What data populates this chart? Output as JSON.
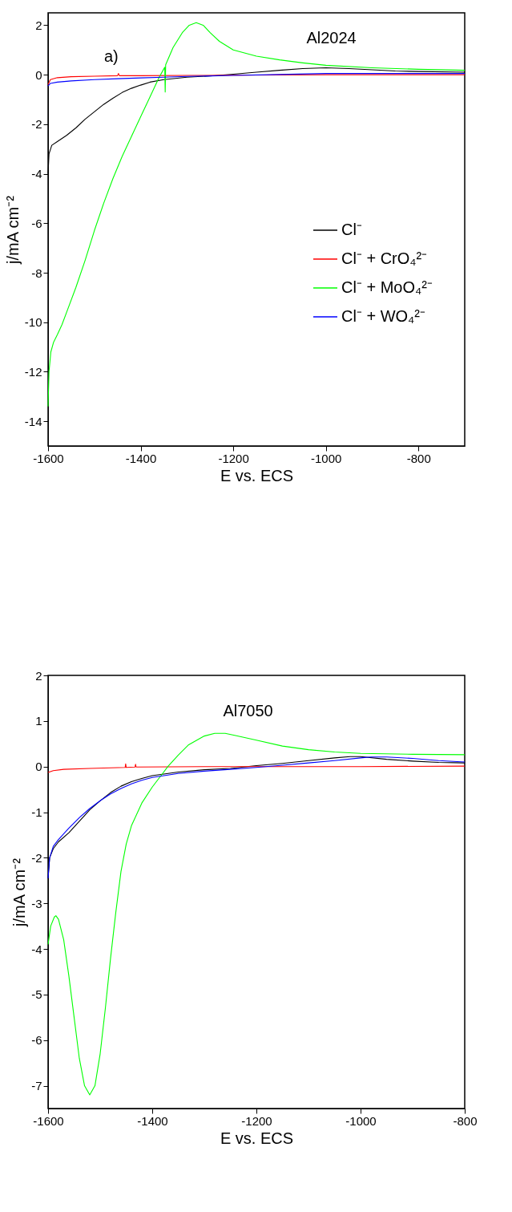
{
  "chart_data": [
    {
      "type": "line",
      "xlabel": "E vs. ECS",
      "ylabel": "j/mA cm⁻²",
      "annotations": [
        "a)",
        "Al2024"
      ],
      "legend": "right",
      "xlim": [
        -1600,
        -700
      ],
      "xticks": [
        -1600,
        -1400,
        -1200,
        -1000,
        -800
      ],
      "ylim": [
        -15,
        2.5
      ],
      "yticks": [
        -14,
        -12,
        -10,
        -8,
        -6,
        -4,
        -2,
        0,
        2
      ],
      "grid": false,
      "series": [
        {
          "name": "Cl⁻",
          "color": "#000000",
          "x": [
            -1600,
            -1598,
            -1592,
            -1580,
            -1560,
            -1540,
            -1520,
            -1500,
            -1480,
            -1460,
            -1440,
            -1420,
            -1400,
            -1380,
            -1350,
            -1300,
            -1250,
            -1200,
            -1150,
            -1100,
            -1050,
            -1000,
            -950,
            -900,
            -850,
            -800,
            -700
          ],
          "values": [
            -4.0,
            -3.2,
            -2.85,
            -2.7,
            -2.45,
            -2.15,
            -1.8,
            -1.5,
            -1.2,
            -0.95,
            -0.72,
            -0.55,
            -0.42,
            -0.3,
            -0.2,
            -0.1,
            -0.05,
            0.02,
            0.1,
            0.18,
            0.25,
            0.28,
            0.25,
            0.2,
            0.15,
            0.13,
            0.1
          ]
        },
        {
          "name": "Cl⁻ + CrO₄²⁻",
          "color": "#ff0000",
          "x": [
            -1600,
            -1595,
            -1580,
            -1550,
            -1500,
            -1450,
            -1448,
            -1446,
            -1400,
            -1300,
            -1200,
            -1000,
            -700
          ],
          "values": [
            -0.4,
            -0.2,
            -0.12,
            -0.08,
            -0.06,
            -0.04,
            0.05,
            -0.04,
            -0.04,
            -0.03,
            -0.02,
            0,
            0
          ]
        },
        {
          "name": "Cl⁻ + MoO₄²⁻",
          "color": "#00ff00",
          "x": [
            -1600,
            -1598,
            -1594,
            -1588,
            -1580,
            -1570,
            -1560,
            -1540,
            -1520,
            -1500,
            -1480,
            -1460,
            -1440,
            -1420,
            -1400,
            -1380,
            -1360,
            -1348,
            -1347,
            -1346,
            -1330,
            -1310,
            -1295,
            -1280,
            -1265,
            -1250,
            -1230,
            -1200,
            -1150,
            -1100,
            -1050,
            -1000,
            -900,
            -800,
            -700
          ],
          "values": [
            -13.4,
            -12,
            -11.2,
            -10.8,
            -10.5,
            -10.1,
            -9.6,
            -8.6,
            -7.5,
            -6.3,
            -5.2,
            -4.2,
            -3.3,
            -2.5,
            -1.7,
            -0.9,
            -0.1,
            0.3,
            -0.7,
            0.4,
            1.1,
            1.7,
            2.0,
            2.1,
            2.0,
            1.7,
            1.35,
            1.0,
            0.75,
            0.6,
            0.48,
            0.38,
            0.28,
            0.22,
            0.18
          ]
        },
        {
          "name": "Cl⁻ + WO₄²⁻",
          "color": "#0000ff",
          "x": [
            -1600,
            -1595,
            -1580,
            -1550,
            -1500,
            -1450,
            -1400,
            -1350,
            -1300,
            -1200,
            -1100,
            -1000,
            -900,
            -700
          ],
          "values": [
            -0.45,
            -0.35,
            -0.3,
            -0.25,
            -0.2,
            -0.16,
            -0.13,
            -0.1,
            -0.07,
            -0.03,
            0.01,
            0.05,
            0.05,
            0.05
          ]
        }
      ]
    },
    {
      "type": "line",
      "xlabel": "E vs. ECS",
      "ylabel": "j/mA cm⁻²",
      "annotations": [
        "Al7050"
      ],
      "legend": "bottom right",
      "xlim": [
        -1600,
        -800
      ],
      "xticks": [
        -1600,
        -1400,
        -1200,
        -1000,
        -800
      ],
      "ylim": [
        -7.5,
        2
      ],
      "yticks": [
        -7,
        -6,
        -5,
        -4,
        -3,
        -2,
        -1,
        0,
        1,
        2
      ],
      "grid": false,
      "series": [
        {
          "name": "Cl⁻",
          "color": "#000000",
          "x": [
            -1600,
            -1597,
            -1590,
            -1580,
            -1560,
            -1540,
            -1520,
            -1500,
            -1480,
            -1460,
            -1440,
            -1420,
            -1400,
            -1350,
            -1300,
            -1250,
            -1200,
            -1150,
            -1100,
            -1050,
            -1020,
            -1000,
            -950,
            -900,
            -850,
            -800
          ],
          "values": [
            -2.45,
            -2.0,
            -1.8,
            -1.65,
            -1.45,
            -1.2,
            -0.95,
            -0.75,
            -0.57,
            -0.43,
            -0.33,
            -0.26,
            -0.2,
            -0.12,
            -0.07,
            -0.04,
            0.02,
            0.07,
            0.13,
            0.19,
            0.22,
            0.22,
            0.16,
            0.12,
            0.09,
            0.08
          ]
        },
        {
          "name": "Cl⁻ + CrO₄²⁻",
          "color": "#ff0000",
          "x": [
            -1600,
            -1590,
            -1570,
            -1520,
            -1452,
            -1451,
            -1450,
            -1433,
            -1432,
            -1431,
            -1300,
            -1200,
            -1000,
            -800
          ],
          "values": [
            -0.13,
            -0.09,
            -0.06,
            -0.04,
            -0.02,
            0.06,
            -0.02,
            -0.01,
            0.05,
            -0.01,
            0,
            0,
            0,
            0.01
          ]
        },
        {
          "name": "Cl⁻ + MoO₄²⁻",
          "color": "#00ff00",
          "x": [
            -1600,
            -1595,
            -1588,
            -1585,
            -1580,
            -1570,
            -1560,
            -1550,
            -1540,
            -1530,
            -1520,
            -1510,
            -1500,
            -1490,
            -1480,
            -1470,
            -1460,
            -1450,
            -1440,
            -1420,
            -1400,
            -1380,
            -1370,
            -1350,
            -1330,
            -1300,
            -1280,
            -1260,
            -1240,
            -1200,
            -1150,
            -1100,
            -1050,
            -1000,
            -900,
            -800
          ],
          "values": [
            -3.9,
            -3.5,
            -3.3,
            -3.27,
            -3.35,
            -3.8,
            -4.6,
            -5.5,
            -6.4,
            -7.0,
            -7.2,
            -7.0,
            -6.3,
            -5.3,
            -4.2,
            -3.2,
            -2.3,
            -1.7,
            -1.3,
            -0.8,
            -0.45,
            -0.15,
            0,
            0.25,
            0.48,
            0.67,
            0.73,
            0.73,
            0.68,
            0.58,
            0.45,
            0.37,
            0.32,
            0.29,
            0.27,
            0.26
          ]
        },
        {
          "name": "Cl⁻ + WO₄²⁻",
          "color": "#0000ff",
          "x": [
            -1600,
            -1597,
            -1590,
            -1580,
            -1560,
            -1540,
            -1520,
            -1500,
            -1480,
            -1460,
            -1440,
            -1420,
            -1400,
            -1350,
            -1300,
            -1250,
            -1200,
            -1150,
            -1100,
            -1050,
            -1000,
            -980,
            -950,
            -900,
            -850,
            -800
          ],
          "values": [
            -2.45,
            -2.0,
            -1.75,
            -1.6,
            -1.35,
            -1.12,
            -0.92,
            -0.75,
            -0.6,
            -0.48,
            -0.38,
            -0.3,
            -0.24,
            -0.15,
            -0.1,
            -0.06,
            -0.02,
            0.03,
            0.08,
            0.13,
            0.19,
            0.21,
            0.21,
            0.18,
            0.13,
            0.1
          ]
        }
      ]
    }
  ]
}
